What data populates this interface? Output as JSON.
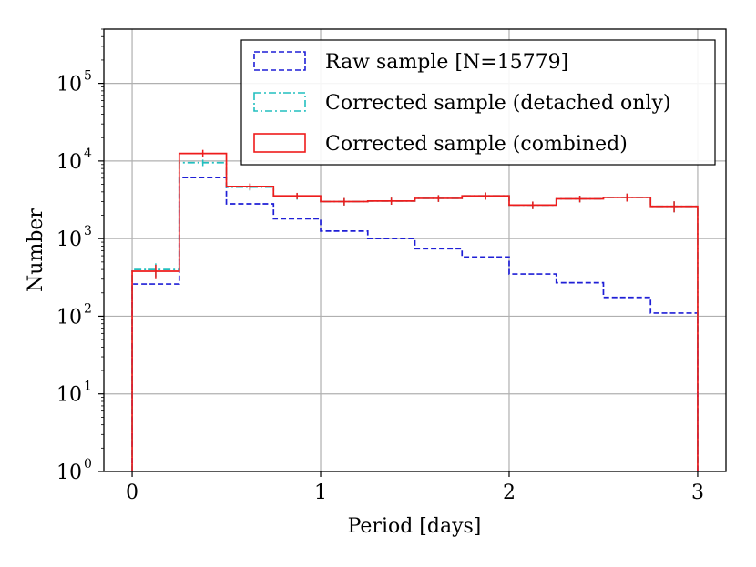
{
  "chart_data": {
    "type": "histogram",
    "xlabel": "Period [days]",
    "ylabel": "Number",
    "xlim": [
      -0.15,
      3.15
    ],
    "ylim": [
      1,
      500000
    ],
    "yscale": "log",
    "grid": true,
    "legend_position": "top-right",
    "x_ticks": [
      0,
      1,
      2,
      3
    ],
    "x_tick_labels": [
      "0",
      "1",
      "2",
      "3"
    ],
    "y_ticks": [
      1,
      10,
      100,
      1000,
      10000,
      100000
    ],
    "y_tick_labels": [
      {
        "base": "10",
        "exp": "0"
      },
      {
        "base": "10",
        "exp": "1"
      },
      {
        "base": "10",
        "exp": "2"
      },
      {
        "base": "10",
        "exp": "3"
      },
      {
        "base": "10",
        "exp": "4"
      },
      {
        "base": "10",
        "exp": "5"
      }
    ],
    "bin_edges": [
      0,
      0.25,
      0.5,
      0.75,
      1.0,
      1.25,
      1.5,
      1.75,
      2.0,
      2.25,
      2.5,
      2.75,
      3.0
    ],
    "series": [
      {
        "name": "Raw sample [N=15779]",
        "style": "dashed",
        "color": "#1f1fd6",
        "values": [
          260,
          6100,
          2800,
          1800,
          1250,
          1000,
          740,
          580,
          350,
          270,
          175,
          110
        ],
        "errors": []
      },
      {
        "name": "Corrected sample (detached only)",
        "style": "dashdot",
        "color": "#22bfbf",
        "values": [
          400,
          9500,
          4600,
          3500,
          3000,
          3050,
          3300,
          3550,
          2700,
          3250,
          3400,
          2600
        ],
        "errors": [
          80,
          900,
          450,
          330,
          330,
          320,
          330,
          380,
          300,
          320,
          400,
          420
        ]
      },
      {
        "name": "Corrected sample (combined)",
        "style": "solid",
        "color": "#ee1c1c",
        "values": [
          380,
          12500,
          4700,
          3550,
          3000,
          3050,
          3300,
          3550,
          2700,
          3250,
          3400,
          2600
        ],
        "errors": [
          80,
          1400,
          450,
          330,
          330,
          320,
          330,
          380,
          300,
          320,
          400,
          420
        ]
      }
    ]
  }
}
